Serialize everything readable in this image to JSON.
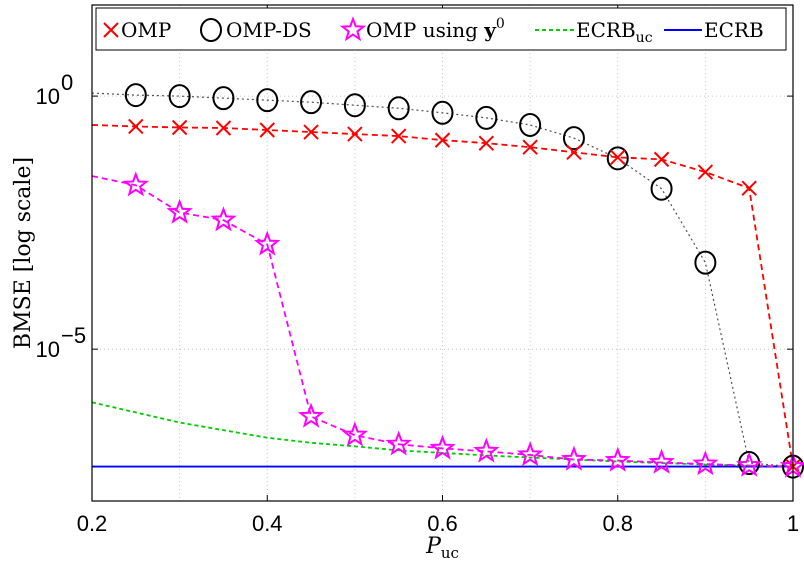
{
  "chart_data": {
    "type": "line",
    "xlabel": "P",
    "xlabel_sub": "uc",
    "ylabel": "BMSE [log scale]",
    "xlim": [
      0.2,
      1.0
    ],
    "ylim_log10": [
      -8,
      1.8
    ],
    "y_scale": "log",
    "grid": true,
    "legend_position": "top",
    "x_ticks": [
      {
        "value": 0.2,
        "label": "0.2"
      },
      {
        "value": 0.4,
        "label": "0.4"
      },
      {
        "value": 0.6,
        "label": "0.6"
      },
      {
        "value": 0.8,
        "label": "0.8"
      },
      {
        "value": 1.0,
        "label": "1"
      }
    ],
    "y_ticks": [
      {
        "value_log10": 0,
        "base": "10",
        "exponent": "0"
      },
      {
        "value_log10": -5,
        "base": "10",
        "exponent": "−5"
      }
    ],
    "x_minor_grid": [
      0.3,
      0.5,
      0.7,
      0.9
    ],
    "series": [
      {
        "name": "OMP",
        "color": "#ff0000",
        "dash": "6,4",
        "marker": "x",
        "x": [
          0.2,
          0.25,
          0.3,
          0.35,
          0.4,
          0.45,
          0.5,
          0.55,
          0.6,
          0.65,
          0.7,
          0.75,
          0.8,
          0.85,
          0.9,
          0.95,
          1.0
        ],
        "log10_y": [
          -0.57,
          -0.6,
          -0.62,
          -0.63,
          -0.67,
          -0.71,
          -0.75,
          -0.79,
          -0.87,
          -0.93,
          -1.01,
          -1.11,
          -1.21,
          -1.25,
          -1.5,
          -1.82,
          -7.32
        ],
        "marker_from_index": 1
      },
      {
        "name": "OMP-DS",
        "color": "#505050",
        "dash": "2,3",
        "marker": "circle",
        "x": [
          0.2,
          0.25,
          0.3,
          0.35,
          0.4,
          0.45,
          0.5,
          0.55,
          0.6,
          0.65,
          0.7,
          0.75,
          0.8,
          0.85,
          0.9,
          0.95,
          1.0
        ],
        "log10_y": [
          0.06,
          0.02,
          0.0,
          -0.04,
          -0.08,
          -0.12,
          -0.18,
          -0.24,
          -0.33,
          -0.43,
          -0.57,
          -0.83,
          -1.23,
          -1.83,
          -3.29,
          -7.25,
          -7.32
        ],
        "marker_from_index": 1
      },
      {
        "name": "OMP using y⁰",
        "label_main": "OMP using ",
        "label_bold": "y",
        "label_sup": "0",
        "color": "#ff00ff",
        "dash": "6,4",
        "marker": "star",
        "x": [
          0.2,
          0.25,
          0.3,
          0.35,
          0.4,
          0.45,
          0.5,
          0.55,
          0.6,
          0.65,
          0.7,
          0.75,
          0.8,
          0.85,
          0.9,
          0.95,
          1.0
        ],
        "log10_y": [
          -1.58,
          -1.76,
          -2.3,
          -2.45,
          -2.93,
          -6.33,
          -6.7,
          -6.88,
          -6.96,
          -7.02,
          -7.09,
          -7.18,
          -7.2,
          -7.24,
          -7.27,
          -7.3,
          -7.32
        ],
        "marker_from_index": 1
      },
      {
        "name": "ECRB_uc",
        "label_main": "ECRB",
        "label_sub": "uc",
        "color": "#00cc00",
        "dash": "4,3",
        "marker": "none",
        "x": [
          0.2,
          0.25,
          0.3,
          0.35,
          0.4,
          0.45,
          0.5,
          0.55,
          0.6,
          0.65,
          0.7,
          0.75,
          0.8,
          0.85,
          0.9,
          0.95,
          1.0
        ],
        "log10_y": [
          -6.05,
          -6.25,
          -6.45,
          -6.6,
          -6.75,
          -6.85,
          -6.92,
          -7.0,
          -7.05,
          -7.1,
          -7.14,
          -7.18,
          -7.22,
          -7.25,
          -7.28,
          -7.3,
          -7.32
        ]
      },
      {
        "name": "ECRB",
        "color": "#0000ff",
        "dash": "",
        "marker": "none",
        "x": [
          0.2,
          1.0
        ],
        "log10_y": [
          -7.32,
          -7.32
        ]
      }
    ]
  }
}
